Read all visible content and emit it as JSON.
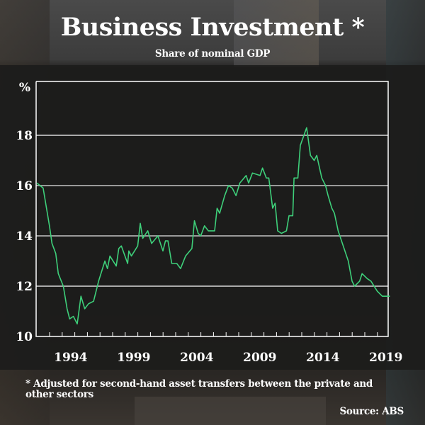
{
  "header": {
    "title": "Business Investment *",
    "subtitle": "Share of nominal GDP"
  },
  "footer": {
    "footnote": "* Adjusted for second-hand asset transfers between the private and other sectors",
    "source": "Source: ABS"
  },
  "colors": {
    "line": "#3ecf7a",
    "grid_major": "#ffffff",
    "grid_minor": "#9a9a9a",
    "axis": "#ffffff"
  },
  "chart_data": {
    "type": "line",
    "title": "Business Investment *",
    "subtitle": "Share of nominal GDP",
    "xlabel": "",
    "ylabel": "%",
    "ylim": [
      10,
      20
    ],
    "xlim": [
      1992.0,
      2020.0
    ],
    "y_ticks": [
      10,
      12,
      14,
      16,
      18
    ],
    "y_tick_labels": [
      "10",
      "12",
      "14",
      "16",
      "18"
    ],
    "gridlines": [
      {
        "value": 18,
        "style": "white"
      },
      {
        "value": 16,
        "style": "gray"
      },
      {
        "value": 14,
        "style": "gray"
      },
      {
        "value": 12,
        "style": "white"
      }
    ],
    "x_tick_labels": [
      "1994",
      "1999",
      "2004",
      "2009",
      "2014",
      "2019"
    ],
    "x_tick_label_years": [
      1994,
      1999,
      2004,
      2009,
      2014,
      2019
    ],
    "x_minor_ticks_every_year": true,
    "grid": true,
    "legend": "none",
    "series": [
      {
        "name": "Business investment share of nominal GDP",
        "x": [
          1992.0,
          1992.5,
          1993.0,
          1993.2,
          1993.5,
          1993.7,
          1994.1,
          1994.4,
          1994.6,
          1994.9,
          1995.2,
          1995.5,
          1995.8,
          1996.1,
          1996.5,
          1996.9,
          1997.4,
          1997.6,
          1997.8,
          1998.3,
          1998.5,
          1998.7,
          1999.2,
          1999.3,
          1999.5,
          2000.0,
          2000.2,
          2000.4,
          2000.8,
          2001.1,
          2001.6,
          2002.0,
          2002.2,
          2002.4,
          2002.7,
          2003.1,
          2003.4,
          2003.8,
          2004.3,
          2004.5,
          2004.8,
          2005.0,
          2005.3,
          2005.6,
          2006.1,
          2006.3,
          2006.5,
          2006.9,
          2007.2,
          2007.5,
          2007.8,
          2008.1,
          2008.6,
          2008.8,
          2009.1,
          2009.7,
          2009.9,
          2010.2,
          2010.4,
          2010.7,
          2010.9,
          2011.1,
          2011.4,
          2011.8,
          2012.0,
          2012.3,
          2012.4,
          2012.7,
          2012.9,
          2013.4,
          2013.7,
          2014.0,
          2014.2,
          2014.6,
          2014.9,
          2015.1,
          2015.4,
          2015.6,
          2015.9,
          2016.7,
          2017.0,
          2017.2,
          2017.6,
          2017.8,
          2018.2,
          2018.5,
          2019.0,
          2019.4,
          2020.0
        ],
        "values": [
          16.1,
          15.9,
          14.4,
          13.7,
          13.3,
          12.5,
          12.0,
          11.1,
          10.7,
          10.8,
          10.5,
          11.6,
          11.1,
          11.3,
          11.4,
          12.2,
          13.0,
          12.7,
          13.2,
          12.8,
          13.5,
          13.6,
          12.9,
          13.4,
          13.2,
          13.6,
          14.5,
          13.9,
          14.2,
          13.7,
          14.0,
          13.4,
          13.8,
          13.8,
          12.9,
          12.9,
          12.7,
          13.2,
          13.5,
          14.6,
          14.1,
          14.0,
          14.4,
          14.2,
          14.2,
          15.1,
          14.9,
          15.6,
          16.0,
          15.9,
          15.6,
          16.1,
          16.4,
          16.1,
          16.5,
          16.4,
          16.7,
          16.3,
          16.3,
          15.1,
          15.3,
          14.2,
          14.1,
          14.2,
          14.8,
          14.8,
          16.3,
          16.3,
          17.6,
          18.3,
          17.2,
          17.0,
          17.2,
          16.3,
          16.0,
          15.6,
          15.1,
          14.9,
          14.2,
          13.0,
          12.2,
          12.0,
          12.2,
          12.5,
          12.3,
          12.2,
          11.8,
          11.6,
          11.6
        ]
      }
    ]
  }
}
